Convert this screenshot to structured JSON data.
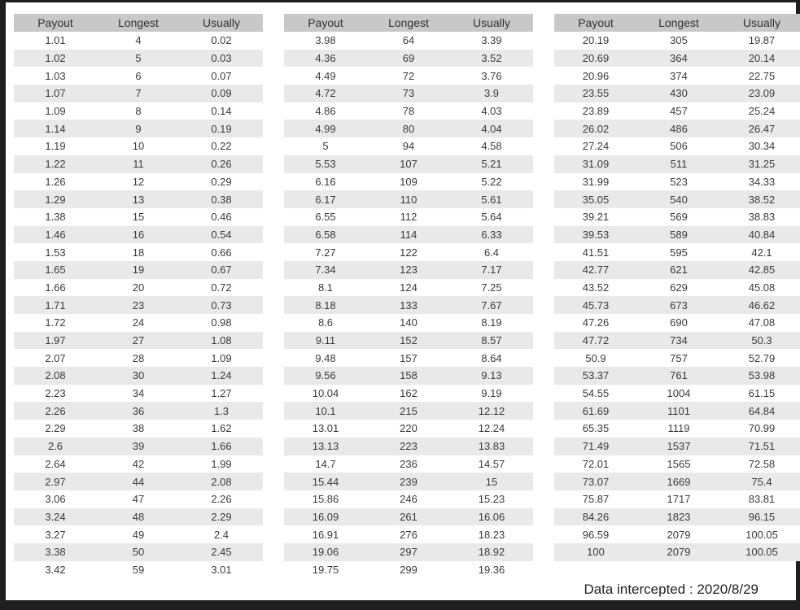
{
  "columns": [
    "Payout",
    "Longest",
    "Usually"
  ],
  "colors": {
    "frame": "#1e1e1e",
    "header_bg": "#c8c8c8",
    "stripe_bg": "#e9e9e9",
    "text": "#3a3a3a"
  },
  "tables": [
    {
      "rows": [
        [
          "1.01",
          "4",
          "0.02"
        ],
        [
          "1.02",
          "5",
          "0.03"
        ],
        [
          "1.03",
          "6",
          "0.07"
        ],
        [
          "1.07",
          "7",
          "0.09"
        ],
        [
          "1.09",
          "8",
          "0.14"
        ],
        [
          "1.14",
          "9",
          "0.19"
        ],
        [
          "1.19",
          "10",
          "0.22"
        ],
        [
          "1.22",
          "11",
          "0.26"
        ],
        [
          "1.26",
          "12",
          "0.29"
        ],
        [
          "1.29",
          "13",
          "0.38"
        ],
        [
          "1.38",
          "15",
          "0.46"
        ],
        [
          "1.46",
          "16",
          "0.54"
        ],
        [
          "1.53",
          "18",
          "0.66"
        ],
        [
          "1.65",
          "19",
          "0.67"
        ],
        [
          "1.66",
          "20",
          "0.72"
        ],
        [
          "1.71",
          "23",
          "0.73"
        ],
        [
          "1.72",
          "24",
          "0.98"
        ],
        [
          "1.97",
          "27",
          "1.08"
        ],
        [
          "2.07",
          "28",
          "1.09"
        ],
        [
          "2.08",
          "30",
          "1.24"
        ],
        [
          "2.23",
          "34",
          "1.27"
        ],
        [
          "2.26",
          "36",
          "1.3"
        ],
        [
          "2.29",
          "38",
          "1.62"
        ],
        [
          "2.6",
          "39",
          "1.66"
        ],
        [
          "2.64",
          "42",
          "1.99"
        ],
        [
          "2.97",
          "44",
          "2.08"
        ],
        [
          "3.06",
          "47",
          "2.26"
        ],
        [
          "3.24",
          "48",
          "2.29"
        ],
        [
          "3.27",
          "49",
          "2.4"
        ],
        [
          "3.38",
          "50",
          "2.45"
        ],
        [
          "3.42",
          "59",
          "3.01"
        ]
      ]
    },
    {
      "rows": [
        [
          "3.98",
          "64",
          "3.39"
        ],
        [
          "4.36",
          "69",
          "3.52"
        ],
        [
          "4.49",
          "72",
          "3.76"
        ],
        [
          "4.72",
          "73",
          "3.9"
        ],
        [
          "4.86",
          "78",
          "4.03"
        ],
        [
          "4.99",
          "80",
          "4.04"
        ],
        [
          "5",
          "94",
          "4.58"
        ],
        [
          "5.53",
          "107",
          "5.21"
        ],
        [
          "6.16",
          "109",
          "5.22"
        ],
        [
          "6.17",
          "110",
          "5.61"
        ],
        [
          "6.55",
          "112",
          "5.64"
        ],
        [
          "6.58",
          "114",
          "6.33"
        ],
        [
          "7.27",
          "122",
          "6.4"
        ],
        [
          "7.34",
          "123",
          "7.17"
        ],
        [
          "8.1",
          "124",
          "7.25"
        ],
        [
          "8.18",
          "133",
          "7.67"
        ],
        [
          "8.6",
          "140",
          "8.19"
        ],
        [
          "9.11",
          "152",
          "8.57"
        ],
        [
          "9.48",
          "157",
          "8.64"
        ],
        [
          "9.56",
          "158",
          "9.13"
        ],
        [
          "10.04",
          "162",
          "9.19"
        ],
        [
          "10.1",
          "215",
          "12.12"
        ],
        [
          "13.01",
          "220",
          "12.24"
        ],
        [
          "13.13",
          "223",
          "13.83"
        ],
        [
          "14.7",
          "236",
          "14.57"
        ],
        [
          "15.44",
          "239",
          "15"
        ],
        [
          "15.86",
          "246",
          "15.23"
        ],
        [
          "16.09",
          "261",
          "16.06"
        ],
        [
          "16.91",
          "276",
          "18.23"
        ],
        [
          "19.06",
          "297",
          "18.92"
        ],
        [
          "19.75",
          "299",
          "19.36"
        ]
      ]
    },
    {
      "rows": [
        [
          "20.19",
          "305",
          "19.87"
        ],
        [
          "20.69",
          "364",
          "20.14"
        ],
        [
          "20.96",
          "374",
          "22.75"
        ],
        [
          "23.55",
          "430",
          "23.09"
        ],
        [
          "23.89",
          "457",
          "25.24"
        ],
        [
          "26.02",
          "486",
          "26.47"
        ],
        [
          "27.24",
          "506",
          "30.34"
        ],
        [
          "31.09",
          "511",
          "31.25"
        ],
        [
          "31.99",
          "523",
          "34.33"
        ],
        [
          "35.05",
          "540",
          "38.52"
        ],
        [
          "39.21",
          "569",
          "38.83"
        ],
        [
          "39.53",
          "589",
          "40.84"
        ],
        [
          "41.51",
          "595",
          "42.1"
        ],
        [
          "42.77",
          "621",
          "42.85"
        ],
        [
          "43.52",
          "629",
          "45.08"
        ],
        [
          "45.73",
          "673",
          "46.62"
        ],
        [
          "47.26",
          "690",
          "47.08"
        ],
        [
          "47.72",
          "734",
          "50.3"
        ],
        [
          "50.9",
          "757",
          "52.79"
        ],
        [
          "53.37",
          "761",
          "53.98"
        ],
        [
          "54.55",
          "1004",
          "61.15"
        ],
        [
          "61.69",
          "1101",
          "64.84"
        ],
        [
          "65.35",
          "1119",
          "70.99"
        ],
        [
          "71.49",
          "1537",
          "71.51"
        ],
        [
          "72.01",
          "1565",
          "72.58"
        ],
        [
          "73.07",
          "1669",
          "75.4"
        ],
        [
          "75.87",
          "1717",
          "83.81"
        ],
        [
          "84.26",
          "1823",
          "96.15"
        ],
        [
          "96.59",
          "2079",
          "100.05"
        ],
        [
          "100",
          "2079",
          "100.05"
        ]
      ]
    }
  ],
  "footer": {
    "label": "Data intercepted : 2020/8/29"
  }
}
